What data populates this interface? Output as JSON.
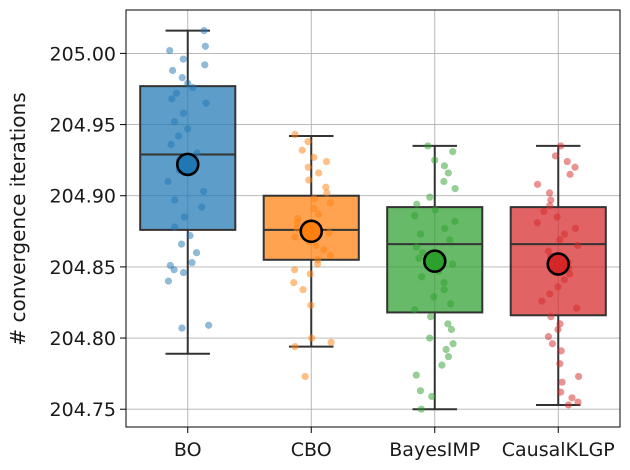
{
  "chart_data": {
    "type": "box",
    "title": "",
    "xlabel": "",
    "ylabel": "# convergence iterations",
    "ylim": [
      204.7375,
      205.0305
    ],
    "yticks": [
      204.75,
      204.8,
      204.85,
      204.9,
      204.95,
      205.0
    ],
    "ytick_labels": [
      "204.75",
      "204.80",
      "204.85",
      "204.90",
      "204.95",
      "205.00"
    ],
    "grid": true,
    "categories": [
      "BO",
      "CBO",
      "BayesIMP",
      "CausalKLGP"
    ],
    "colors": [
      "#1f77b4",
      "#ff7f0e",
      "#2ca02c",
      "#d62728"
    ],
    "boxes": [
      {
        "name": "BO",
        "whisker_low": 204.789,
        "q1": 204.876,
        "median": 204.929,
        "q3": 204.977,
        "whisker_high": 205.016,
        "mean": 204.922,
        "points": [
          205.016,
          205.005,
          205.002,
          204.996,
          204.992,
          204.988,
          204.983,
          204.979,
          204.976,
          204.972,
          204.968,
          204.965,
          204.958,
          204.952,
          204.947,
          204.942,
          204.936,
          204.93,
          204.925,
          204.918,
          204.91,
          204.903,
          204.897,
          204.892,
          204.885,
          204.878,
          204.872,
          204.866,
          204.86,
          204.853,
          204.851,
          204.848,
          204.846,
          204.84,
          204.809,
          204.807
        ]
      },
      {
        "name": "CBO",
        "whisker_low": 204.794,
        "q1": 204.855,
        "median": 204.876,
        "q3": 204.9,
        "whisker_high": 204.942,
        "mean": 204.875,
        "points": [
          204.943,
          204.938,
          204.932,
          204.927,
          204.924,
          204.92,
          204.916,
          204.911,
          204.906,
          204.902,
          204.898,
          204.895,
          204.891,
          204.887,
          204.884,
          204.881,
          204.877,
          204.874,
          204.871,
          204.868,
          204.865,
          204.862,
          204.858,
          204.855,
          204.852,
          204.848,
          204.845,
          204.839,
          204.834,
          204.823,
          204.8,
          204.797,
          204.794,
          204.773
        ]
      },
      {
        "name": "BayesIMP",
        "whisker_low": 204.75,
        "q1": 204.818,
        "median": 204.866,
        "q3": 204.892,
        "whisker_high": 204.935,
        "mean": 204.854,
        "points": [
          204.935,
          204.931,
          204.925,
          204.921,
          204.916,
          204.91,
          204.905,
          204.899,
          204.894,
          204.89,
          204.886,
          204.882,
          204.877,
          204.873,
          204.869,
          204.864,
          204.86,
          204.856,
          204.852,
          204.847,
          204.843,
          204.839,
          204.834,
          204.829,
          204.824,
          204.82,
          204.815,
          204.81,
          204.806,
          204.8,
          204.796,
          204.792,
          204.787,
          204.781,
          204.774,
          204.763,
          204.759,
          204.75
        ]
      },
      {
        "name": "CausalKLGP",
        "whisker_low": 204.753,
        "q1": 204.816,
        "median": 204.866,
        "q3": 204.892,
        "whisker_high": 204.935,
        "mean": 204.852,
        "points": [
          204.935,
          204.928,
          204.924,
          204.92,
          204.915,
          204.908,
          204.902,
          204.897,
          204.893,
          204.889,
          204.885,
          204.881,
          204.877,
          204.873,
          204.869,
          204.865,
          204.861,
          204.857,
          204.853,
          204.849,
          204.845,
          204.841,
          204.836,
          204.831,
          204.826,
          204.821,
          204.815,
          204.81,
          204.806,
          204.801,
          204.796,
          204.791,
          204.782,
          204.773,
          204.769,
          204.762,
          204.758,
          204.755,
          204.753
        ]
      }
    ]
  }
}
